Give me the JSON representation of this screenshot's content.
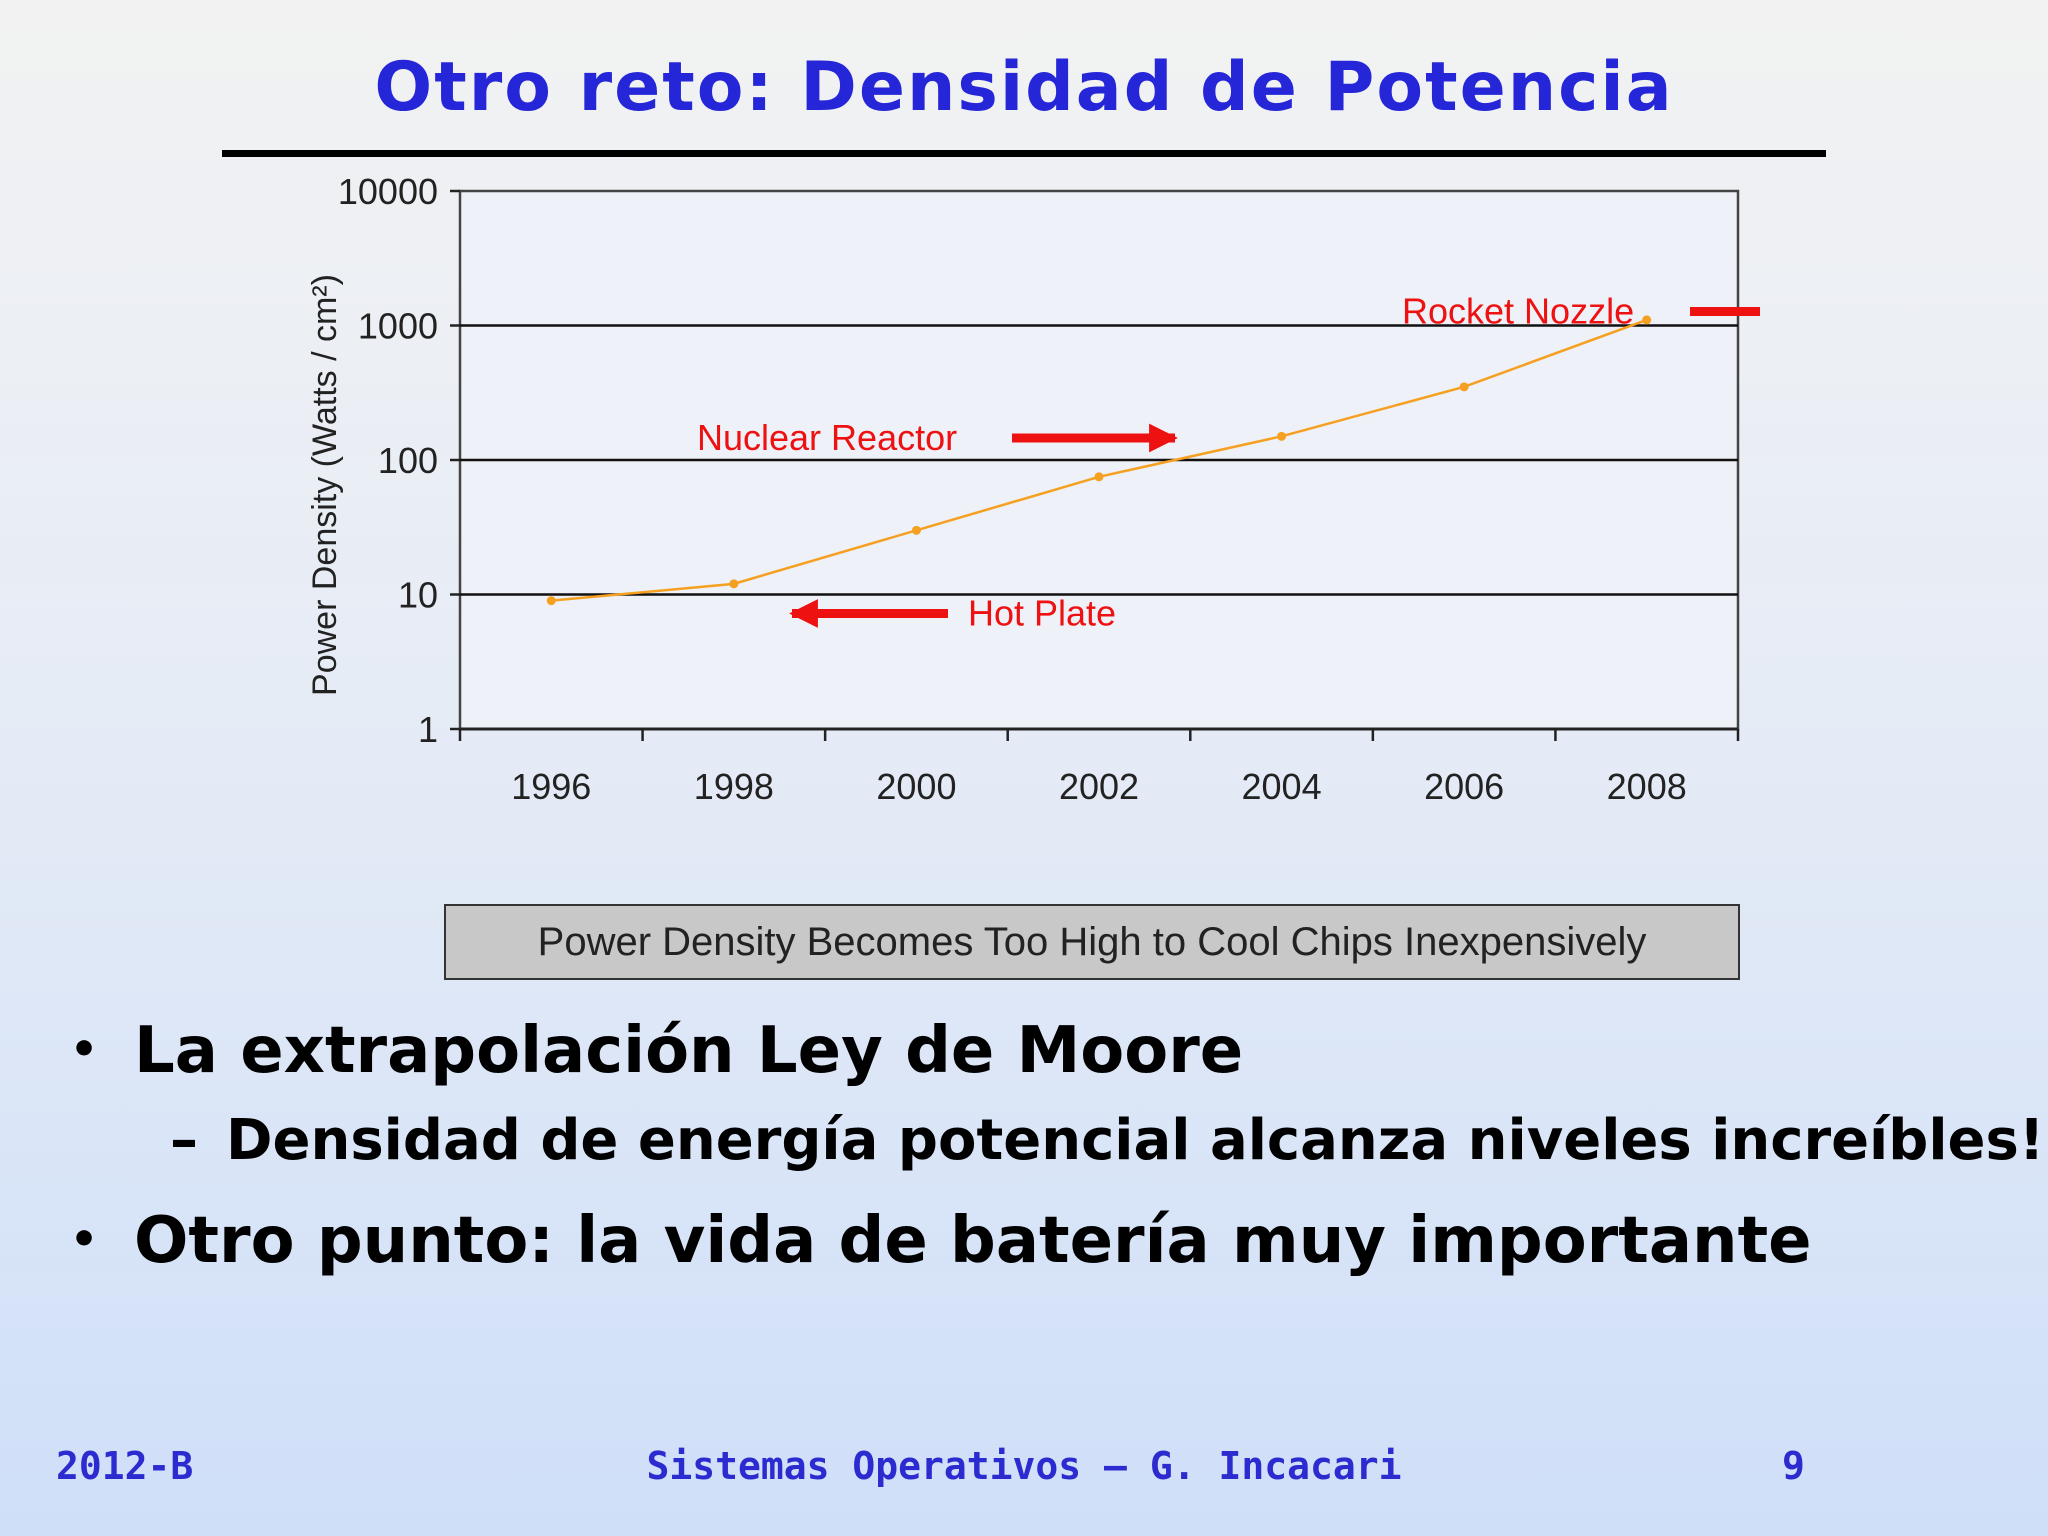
{
  "slide": {
    "title": "Otro reto: Densidad de Potencia",
    "caption": "Power Density Becomes Too High to Cool Chips Inexpensively",
    "bullets": [
      {
        "marker": "•",
        "text": "La extrapolación Ley de Moore"
      },
      {
        "marker": "–",
        "text": "Densidad de energía potencial alcanza niveles increíbles!"
      },
      {
        "marker": "•",
        "text": "Otro punto: la vida de batería muy importante"
      }
    ],
    "footer": {
      "left": "2012-B",
      "center": "Sistemas Operativos – G. Incacari",
      "right": "9"
    }
  },
  "chart_data": {
    "type": "line",
    "title": "",
    "xlabel": "",
    "ylabel": "Power Density (Watts / cm²)",
    "yscale": "log",
    "ylim": [
      1,
      10000
    ],
    "yticks": [
      1,
      10,
      100,
      1000,
      10000
    ],
    "ytick_labels": [
      "1",
      "10",
      "100",
      "1000",
      "10000"
    ],
    "xtick_labels": [
      "1996",
      "1998",
      "2000",
      "2002",
      "2004",
      "2006",
      "2008"
    ],
    "grid": true,
    "series": [
      {
        "x": [
          1996,
          1998,
          2000,
          2002,
          2004,
          2006,
          2008
        ],
        "y": [
          9,
          12,
          30,
          75,
          150,
          350,
          1100
        ],
        "color": "#f5a020"
      }
    ],
    "annotations": [
      {
        "text": "Rocket Nozzle",
        "value": 1000,
        "arrow": "right",
        "color": "#ee1111"
      },
      {
        "text": "Nuclear Reactor",
        "value": 100,
        "arrow": "right",
        "color": "#ee1111"
      },
      {
        "text": "Hot Plate",
        "value": 10,
        "arrow": "left",
        "color": "#ee1111"
      }
    ]
  }
}
